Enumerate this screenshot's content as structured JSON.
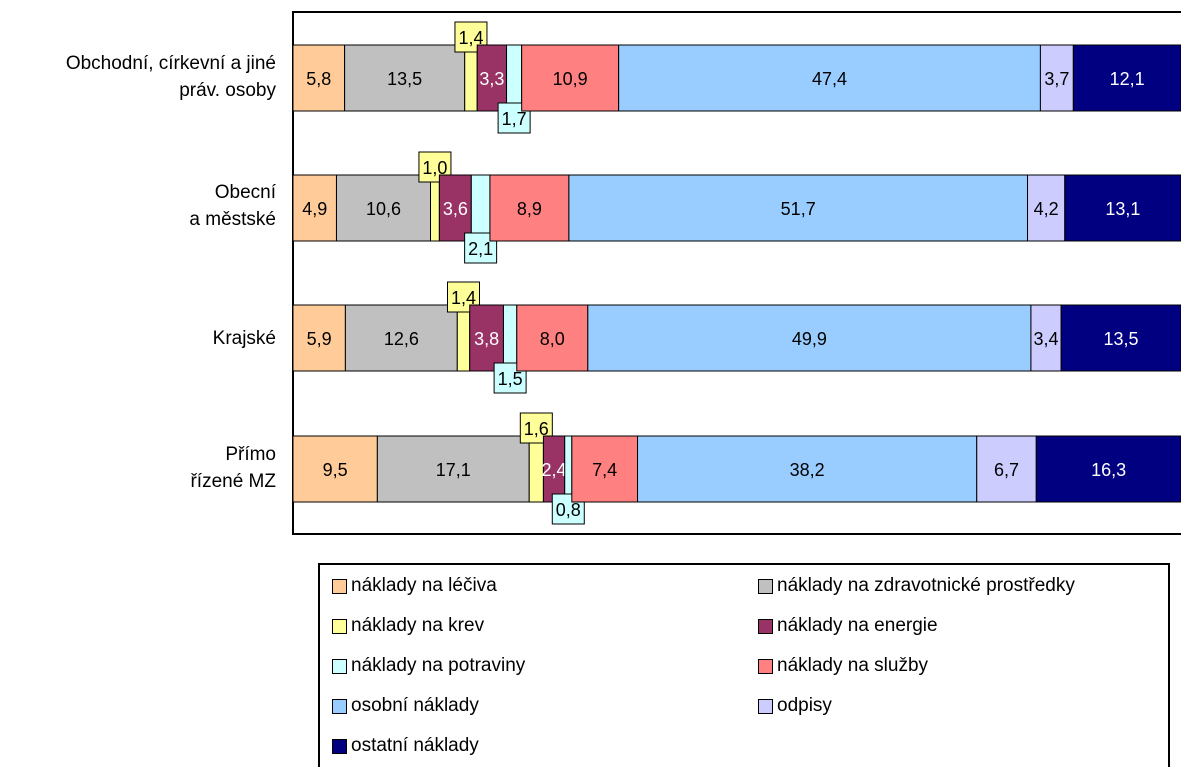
{
  "chart_data": {
    "type": "bar",
    "stacked": true,
    "orientation": "horizontal",
    "normalized_to_percent": true,
    "categories": [
      "Obchodní, církevní a jiné\npráv. osoby",
      "Obecní\na městské",
      "Krajské",
      "Přímo\nřízené MZ"
    ],
    "series": [
      {
        "name": "náklady na léčiva",
        "color": "#ffcc99",
        "values": [
          5.8,
          4.9,
          5.9,
          9.5
        ],
        "labels": [
          "5,8",
          "4,9",
          "5,9",
          "9,5"
        ]
      },
      {
        "name": "náklady na zdravotnické prostředky",
        "color": "#c0c0c0",
        "values": [
          13.5,
          10.6,
          12.6,
          17.1
        ],
        "labels": [
          "13,5",
          "10,6",
          "12,6",
          "17,1"
        ]
      },
      {
        "name": "náklady na krev",
        "color": "#ffff99",
        "values": [
          1.4,
          1.0,
          1.4,
          1.6
        ],
        "labels": [
          "1,4",
          "1,0",
          "1,4",
          "1,6"
        ]
      },
      {
        "name": "náklady na energie",
        "color": "#993366",
        "values": [
          3.3,
          3.6,
          3.8,
          2.4
        ],
        "labels": [
          "3,3",
          "3,6",
          "3,8",
          "2,4"
        ]
      },
      {
        "name": "náklady na potraviny",
        "color": "#ccffff",
        "values": [
          1.7,
          2.1,
          1.5,
          0.8
        ],
        "labels": [
          "1,7",
          "2,1",
          "1,5",
          "0,8"
        ]
      },
      {
        "name": "náklady na služby",
        "color": "#ff8080",
        "values": [
          10.9,
          8.9,
          8.0,
          7.4
        ],
        "labels": [
          "10,9",
          "8,9",
          "8,0",
          "7,4"
        ]
      },
      {
        "name": "osobní náklady",
        "color": "#99ccff",
        "values": [
          47.4,
          51.7,
          49.9,
          38.2
        ],
        "labels": [
          "47,4",
          "51,7",
          "49,9",
          "38,2"
        ]
      },
      {
        "name": "odpisy",
        "color": "#ccccff",
        "values": [
          3.7,
          4.2,
          3.4,
          6.7
        ],
        "labels": [
          "3,7",
          "4,2",
          "3,4",
          "6,7"
        ]
      },
      {
        "name": "ostatní náklady",
        "color": "#000080",
        "values": [
          12.1,
          13.1,
          13.5,
          16.3
        ],
        "labels": [
          "12,1",
          "13,1",
          "13,5",
          "16,3"
        ]
      }
    ],
    "xlim": [
      0,
      100
    ],
    "grid": false,
    "legend_placement": "bottom",
    "callout_series": [
      "náklady na krev",
      "náklady na potraviny"
    ],
    "white_label_series": [
      "náklady na energie",
      "ostatní náklady"
    ]
  }
}
